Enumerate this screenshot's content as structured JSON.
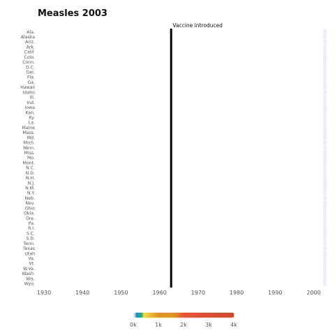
{
  "chart_data": {
    "type": "heatmap",
    "title": "Measles 2003",
    "xlabel": "",
    "ylabel": "",
    "xlim": [
      1928,
      2003
    ],
    "x_ticks": [
      "1930",
      "1940",
      "1950",
      "1960",
      "1970",
      "1980",
      "1990",
      "2000"
    ],
    "x_tick_values": [
      1930,
      1940,
      1950,
      1960,
      1970,
      1980,
      1990,
      2000
    ],
    "states": [
      "Ala.",
      "Alaska",
      "Ariz.",
      "Ark.",
      "Calif.",
      "Colo.",
      "Conn.",
      "D.C.",
      "Del.",
      "Fla.",
      "Ga.",
      "Hawaii",
      "Idaho",
      "Ill.",
      "Ind.",
      "Iowa",
      "Kan.",
      "Ky.",
      "La.",
      "Maine",
      "Mass.",
      "Md.",
      "Mich.",
      "Minn.",
      "Miss.",
      "Mo.",
      "Mont.",
      "N.C.",
      "N.D.",
      "N.H.",
      "N.J.",
      "N.M.",
      "N.Y.",
      "Neb.",
      "Nev.",
      "Ohio",
      "Okla.",
      "Ore.",
      "Pa.",
      "R.I.",
      "S.C.",
      "S.D.",
      "Tenn.",
      "Texas",
      "Utah",
      "Va.",
      "Vt.",
      "W.Va.",
      "Wash.",
      "Wis.",
      "Wyo."
    ],
    "filled_year": 2003,
    "cell_value": 0,
    "annotation": {
      "label": "Vaccine introduced",
      "year": 1963
    },
    "legend": {
      "ticks": [
        "0k",
        "1k",
        "2k",
        "3k",
        "4k"
      ],
      "tick_values": [
        0,
        1000,
        2000,
        3000,
        4000
      ],
      "colors": [
        "#e7f0fa",
        "#c9e2f6",
        "#95cbee",
        "#0099dc",
        "#4ab04a",
        "#ffd73e",
        "#eec73a",
        "#e29421",
        "#e29421",
        "#f05336",
        "#ce472e"
      ],
      "stops": [
        0,
        0.01,
        0.02,
        0.03,
        0.09,
        0.1,
        0.15,
        0.25,
        0.4,
        0.5,
        1
      ]
    },
    "grid": false
  }
}
